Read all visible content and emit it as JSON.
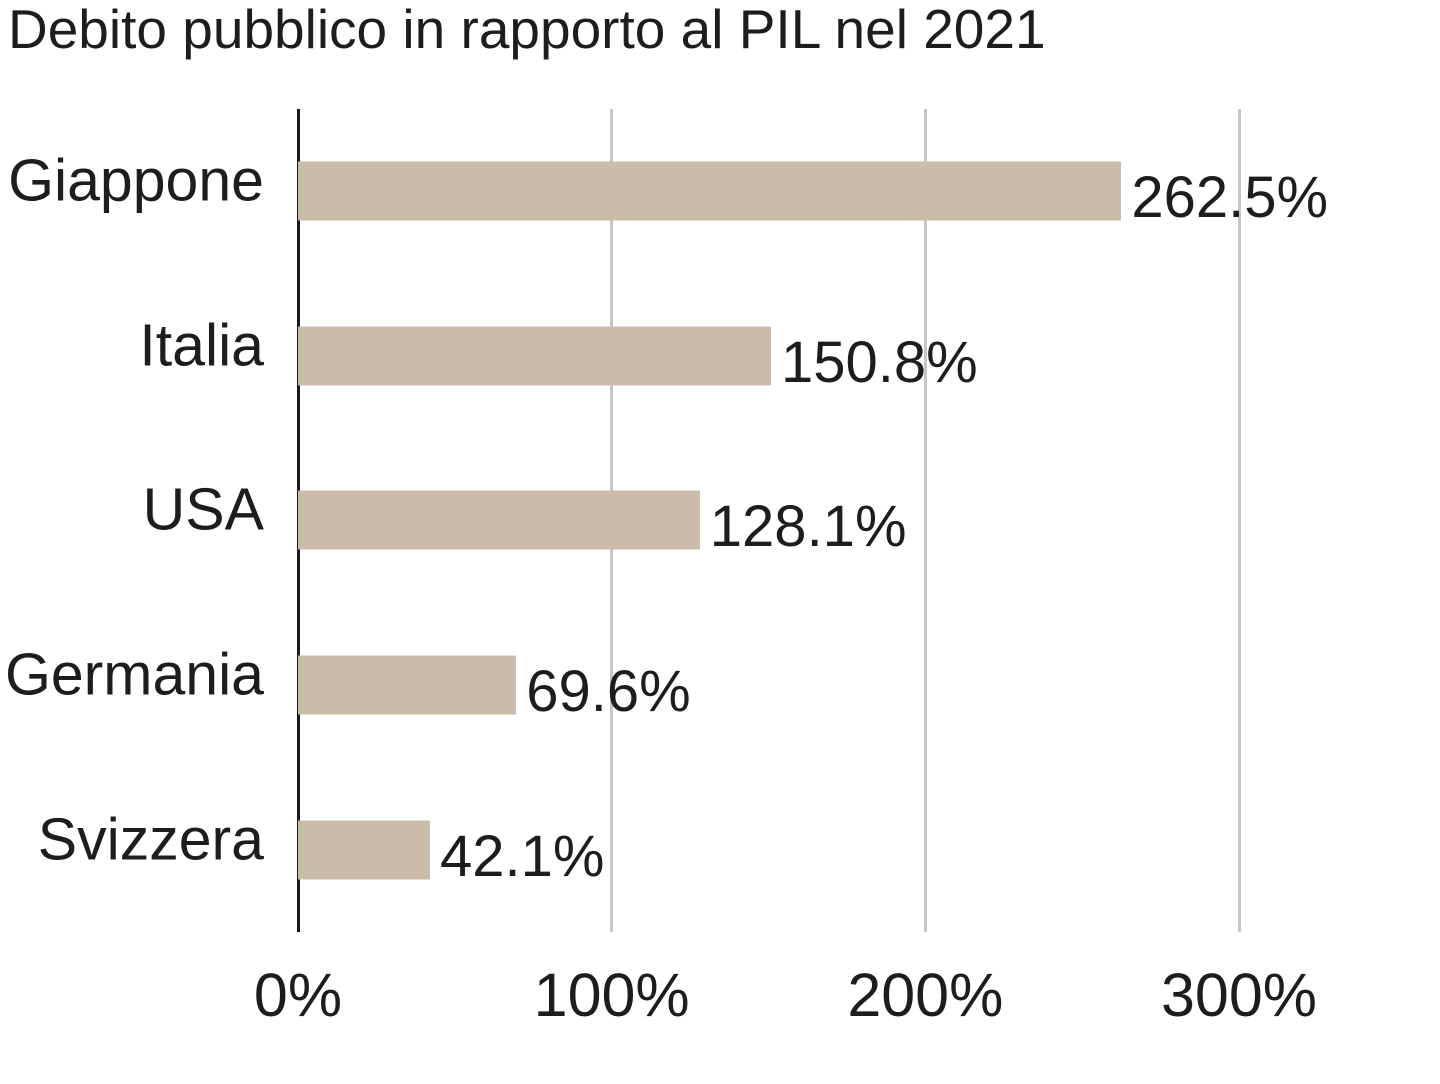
{
  "chart_data": {
    "type": "bar",
    "orientation": "horizontal",
    "title": "Debito pubblico in rapporto al PIL nel 2021",
    "categories": [
      "Giappone",
      "Italia",
      "USA",
      "Germania",
      "Svizzera"
    ],
    "values": [
      262.5,
      150.8,
      128.1,
      69.6,
      42.1
    ],
    "value_labels": [
      "262.5%",
      "150.8%",
      "128.1%",
      "69.6%",
      "42.1%"
    ],
    "xlabel": "",
    "ylabel": "",
    "xlim": [
      0,
      364
    ],
    "x_ticks": [
      {
        "value": 0,
        "label": "0%"
      },
      {
        "value": 100,
        "label": "100%"
      },
      {
        "value": 200,
        "label": "200%"
      },
      {
        "value": 300,
        "label": "300%"
      }
    ],
    "grid": "vertical-only",
    "legend_position": "none",
    "colors": {
      "bar": "#cbbba9",
      "gridline": "#c6c6c6",
      "axis": "#1a1a1a",
      "text": "#1d1d1b",
      "background": "#ffffff"
    }
  }
}
